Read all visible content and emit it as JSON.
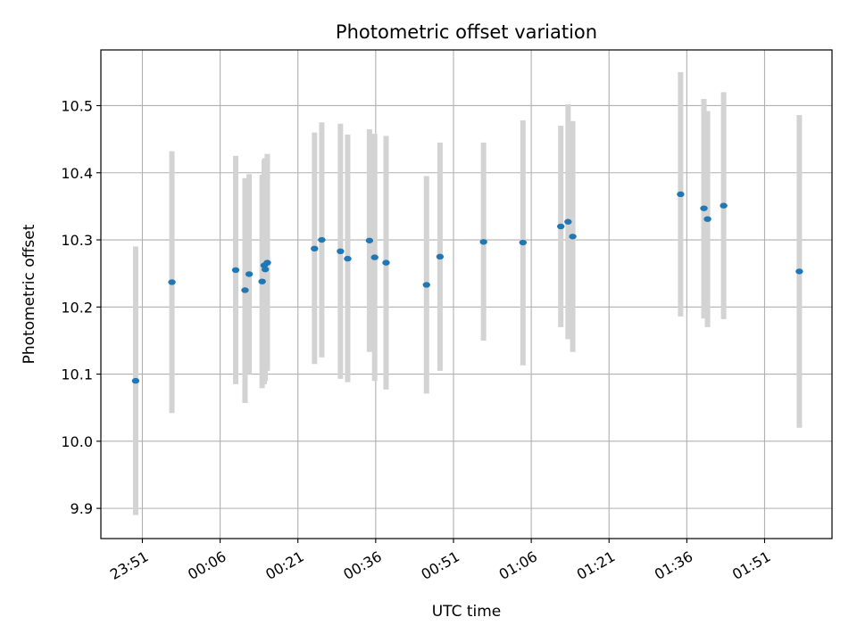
{
  "chart_data": {
    "type": "scatter",
    "title": "Photometric offset variation",
    "xlabel": "UTC time",
    "ylabel": "Photometric offset",
    "x_tick_labels": [
      "23:51",
      "00:06",
      "00:21",
      "00:36",
      "00:51",
      "01:06",
      "01:21",
      "01:36",
      "01:51"
    ],
    "x_tick_minutes": [
      -9,
      6,
      21,
      36,
      51,
      66,
      81,
      96,
      111
    ],
    "xlim_minutes": [
      -17,
      124
    ],
    "y_ticks": [
      9.9,
      10.0,
      10.1,
      10.2,
      10.3,
      10.4,
      10.5
    ],
    "y_tick_labels": [
      "9.9",
      "10.0",
      "10.1",
      "10.2",
      "10.3",
      "10.4",
      "10.5"
    ],
    "ylim": [
      9.855,
      10.583
    ],
    "grid": true,
    "colors": {
      "point": "#1f77b4",
      "errorbar": "#d3d3d3"
    },
    "series": [
      {
        "points": [
          {
            "t": -10.3,
            "y": 10.09,
            "low": 9.89,
            "high": 10.29
          },
          {
            "t": -3.3,
            "y": 10.237,
            "low": 10.042,
            "high": 10.432
          },
          {
            "t": 9.0,
            "y": 10.255,
            "low": 10.085,
            "high": 10.425
          },
          {
            "t": 10.8,
            "y": 10.225,
            "low": 10.057,
            "high": 10.392
          },
          {
            "t": 11.6,
            "y": 10.249,
            "low": 10.1,
            "high": 10.398
          },
          {
            "t": 14.1,
            "y": 10.238,
            "low": 10.079,
            "high": 10.397
          },
          {
            "t": 14.5,
            "y": 10.262,
            "low": 10.085,
            "high": 10.42
          },
          {
            "t": 14.7,
            "y": 10.256,
            "low": 10.09,
            "high": 10.422
          },
          {
            "t": 15.1,
            "y": 10.266,
            "low": 10.105,
            "high": 10.428
          },
          {
            "t": 24.2,
            "y": 10.287,
            "low": 10.115,
            "high": 10.46
          },
          {
            "t": 25.6,
            "y": 10.3,
            "low": 10.125,
            "high": 10.475
          },
          {
            "t": 29.2,
            "y": 10.283,
            "low": 10.093,
            "high": 10.473
          },
          {
            "t": 30.6,
            "y": 10.272,
            "low": 10.088,
            "high": 10.457
          },
          {
            "t": 34.8,
            "y": 10.299,
            "low": 10.133,
            "high": 10.465
          },
          {
            "t": 35.8,
            "y": 10.274,
            "low": 10.09,
            "high": 10.458
          },
          {
            "t": 38.0,
            "y": 10.266,
            "low": 10.077,
            "high": 10.455
          },
          {
            "t": 45.8,
            "y": 10.233,
            "low": 10.071,
            "high": 10.395
          },
          {
            "t": 48.4,
            "y": 10.275,
            "low": 10.105,
            "high": 10.445
          },
          {
            "t": 56.8,
            "y": 10.297,
            "low": 10.15,
            "high": 10.445
          },
          {
            "t": 64.4,
            "y": 10.296,
            "low": 10.113,
            "high": 10.478
          },
          {
            "t": 71.7,
            "y": 10.32,
            "low": 10.17,
            "high": 10.47
          },
          {
            "t": 73.1,
            "y": 10.327,
            "low": 10.152,
            "high": 10.502
          },
          {
            "t": 74.0,
            "y": 10.305,
            "low": 10.133,
            "high": 10.477
          },
          {
            "t": 94.8,
            "y": 10.368,
            "low": 10.186,
            "high": 10.55
          },
          {
            "t": 99.3,
            "y": 10.347,
            "low": 10.183,
            "high": 10.51
          },
          {
            "t": 100.0,
            "y": 10.331,
            "low": 10.17,
            "high": 10.492
          },
          {
            "t": 103.1,
            "y": 10.351,
            "low": 10.182,
            "high": 10.52
          },
          {
            "t": 117.7,
            "y": 10.253,
            "low": 10.02,
            "high": 10.486
          }
        ]
      }
    ]
  }
}
